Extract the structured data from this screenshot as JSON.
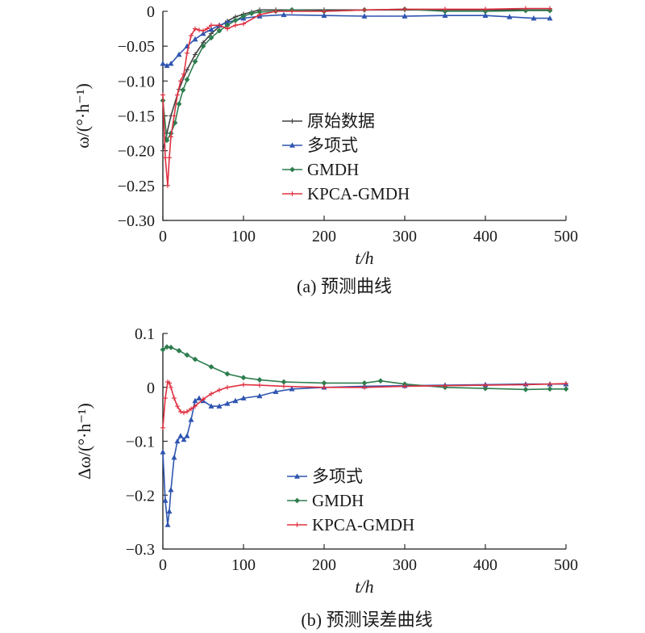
{
  "figure": {
    "caption_a": "(a) 预测曲线",
    "caption_b": "(b) 预测误差曲线"
  },
  "colors": {
    "raw": "#404040",
    "poly": "#2f55b0",
    "gmdh": "#2e7d4f",
    "kpca": "#e03040"
  },
  "chart_data": [
    {
      "type": "line",
      "xlabel": "t/h",
      "ylabel": "ω/(°·h⁻¹)",
      "xlim": [
        0,
        500
      ],
      "ylim": [
        -0.3,
        0
      ],
      "xticks": [
        "0",
        "100",
        "200",
        "300",
        "400",
        "500"
      ],
      "yticks": [
        "0",
        "−0.05",
        "−0.10",
        "−0.15",
        "−0.20",
        "−0.25",
        "−0.30"
      ],
      "legend_position": "center",
      "grid": false,
      "series": [
        {
          "name": "原始数据",
          "marker": "plus",
          "color": "#404040",
          "x": [
            0,
            5,
            10,
            20,
            30,
            40,
            50,
            60,
            70,
            80,
            90,
            100,
            110,
            120,
            140,
            160,
            200,
            250,
            300,
            350,
            400,
            450,
            480
          ],
          "y": [
            -0.2,
            -0.175,
            -0.15,
            -0.112,
            -0.084,
            -0.062,
            -0.045,
            -0.032,
            -0.022,
            -0.014,
            -0.008,
            -0.004,
            -0.001,
            0.002,
            0.002,
            0.002,
            0.002,
            0.002,
            0.002,
            0.002,
            0.002,
            0.002,
            0.002
          ]
        },
        {
          "name": "多项式",
          "marker": "triangle",
          "color": "#2f55b0",
          "x": [
            0,
            5,
            10,
            20,
            30,
            40,
            50,
            60,
            70,
            80,
            100,
            120,
            150,
            200,
            250,
            300,
            350,
            400,
            430,
            460,
            480
          ],
          "y": [
            -0.075,
            -0.078,
            -0.075,
            -0.062,
            -0.05,
            -0.04,
            -0.032,
            -0.026,
            -0.02,
            -0.016,
            -0.01,
            -0.007,
            -0.005,
            -0.006,
            -0.007,
            -0.007,
            -0.006,
            -0.006,
            -0.008,
            -0.01,
            -0.01
          ]
        },
        {
          "name": "GMDH",
          "marker": "diamond",
          "color": "#2e7d4f",
          "x": [
            0,
            5,
            10,
            15,
            20,
            25,
            30,
            40,
            50,
            60,
            70,
            80,
            90,
            100,
            110,
            120,
            140,
            160,
            200,
            250,
            300,
            350,
            400,
            450,
            480
          ],
          "y": [
            -0.128,
            -0.185,
            -0.175,
            -0.16,
            -0.133,
            -0.113,
            -0.098,
            -0.072,
            -0.05,
            -0.038,
            -0.028,
            -0.02,
            -0.013,
            -0.007,
            -0.003,
            -0.001,
            0.0,
            0.002,
            0.0,
            0.002,
            0.003,
            0.0,
            0.0,
            0.001,
            0.001
          ]
        },
        {
          "name": "KPCA-GMDH",
          "marker": "plus",
          "color": "#e03040",
          "x": [
            0,
            3,
            6,
            8,
            10,
            14,
            18,
            22,
            26,
            30,
            35,
            40,
            45,
            50,
            55,
            60,
            70,
            80,
            90,
            100,
            120,
            140,
            160,
            200,
            250,
            300,
            350,
            400,
            450,
            480
          ],
          "y": [
            -0.12,
            -0.21,
            -0.25,
            -0.21,
            -0.18,
            -0.15,
            -0.12,
            -0.1,
            -0.09,
            -0.06,
            -0.035,
            -0.025,
            -0.027,
            -0.028,
            -0.025,
            -0.02,
            -0.02,
            -0.025,
            -0.02,
            -0.018,
            -0.005,
            0.0,
            0.0,
            0.0,
            0.002,
            0.003,
            0.003,
            0.003,
            0.004,
            0.004
          ]
        }
      ]
    },
    {
      "type": "line",
      "xlabel": "t/h",
      "ylabel": "Δω/(°·h⁻¹)",
      "xlim": [
        0,
        500
      ],
      "ylim": [
        -0.3,
        0.1
      ],
      "xticks": [
        "0",
        "100",
        "200",
        "300",
        "400",
        "500"
      ],
      "yticks": [
        "0.1",
        "0",
        "−0.1",
        "−0.2",
        "−0.3"
      ],
      "legend_position": "lower-center",
      "grid": false,
      "series": [
        {
          "name": "多项式",
          "marker": "triangle",
          "color": "#2f55b0",
          "x": [
            0,
            3,
            6,
            8,
            10,
            14,
            18,
            22,
            26,
            30,
            35,
            40,
            45,
            50,
            60,
            70,
            80,
            90,
            100,
            120,
            140,
            160,
            200,
            250,
            300,
            350,
            400,
            450,
            480,
            500
          ],
          "y": [
            -0.12,
            -0.21,
            -0.255,
            -0.23,
            -0.19,
            -0.13,
            -0.1,
            -0.09,
            -0.097,
            -0.09,
            -0.06,
            -0.025,
            -0.02,
            -0.025,
            -0.035,
            -0.035,
            -0.03,
            -0.025,
            -0.02,
            -0.016,
            -0.008,
            -0.003,
            0.0,
            0.002,
            0.003,
            0.004,
            0.005,
            0.006,
            0.006,
            0.006
          ]
        },
        {
          "name": "GMDH",
          "marker": "diamond",
          "color": "#2e7d4f",
          "x": [
            0,
            5,
            10,
            20,
            30,
            40,
            60,
            80,
            100,
            120,
            150,
            200,
            250,
            270,
            300,
            350,
            400,
            450,
            480,
            500
          ],
          "y": [
            0.07,
            0.075,
            0.074,
            0.068,
            0.06,
            0.052,
            0.038,
            0.025,
            0.018,
            0.014,
            0.01,
            0.008,
            0.008,
            0.012,
            0.006,
            0.0,
            -0.002,
            -0.004,
            -0.003,
            -0.003
          ]
        },
        {
          "name": "KPCA-GMDH",
          "marker": "plus",
          "color": "#e03040",
          "x": [
            0,
            3,
            6,
            8,
            10,
            14,
            18,
            22,
            26,
            30,
            35,
            40,
            50,
            60,
            70,
            80,
            100,
            120,
            150,
            200,
            250,
            300,
            350,
            400,
            450,
            480,
            500
          ],
          "y": [
            -0.075,
            -0.02,
            0.01,
            0.008,
            0.0,
            -0.02,
            -0.035,
            -0.045,
            -0.047,
            -0.045,
            -0.04,
            -0.035,
            -0.022,
            -0.012,
            -0.005,
            0.0,
            0.005,
            0.004,
            0.002,
            0.0,
            0.0,
            0.002,
            0.003,
            0.004,
            0.005,
            0.006,
            0.007
          ]
        }
      ]
    }
  ]
}
